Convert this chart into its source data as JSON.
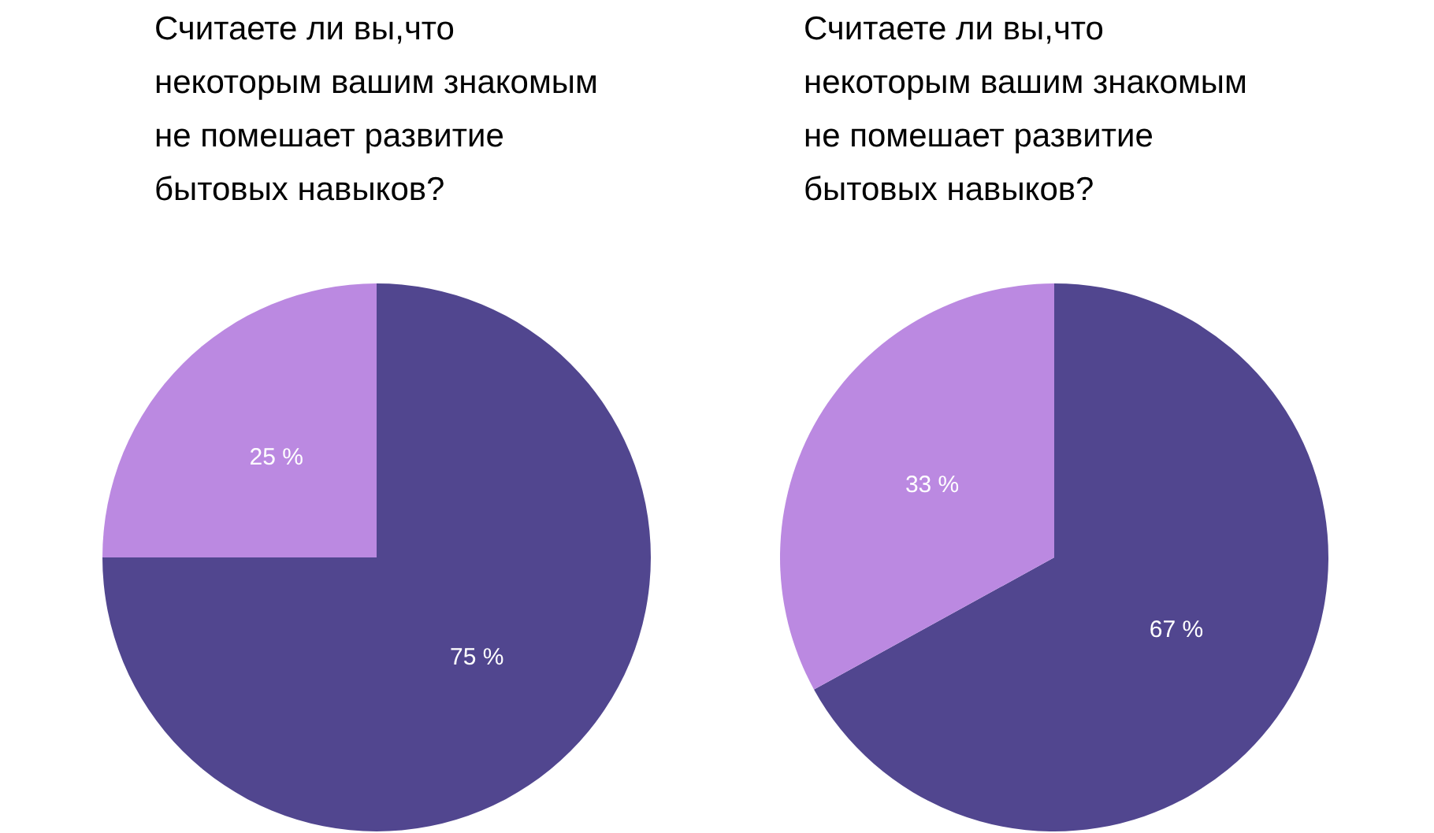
{
  "chart_data": [
    {
      "type": "pie",
      "title": "Считаете ли вы,что некоторым вашим знакомым не помешает развитие бытовых навыков?",
      "categories": [
        null,
        null
      ],
      "values": [
        75,
        25
      ],
      "colors": [
        "#51468f",
        "#bb89e1"
      ],
      "value_labels": [
        "75 %",
        "25 %"
      ]
    },
    {
      "type": "pie",
      "title": "Считаете ли вы,что некоторым вашим знакомым не помешает развитие бытовых навыков?",
      "categories": [
        null,
        null
      ],
      "values": [
        67,
        33
      ],
      "colors": [
        "#51468f",
        "#bb89e1"
      ],
      "value_labels": [
        "67 %",
        "33 %"
      ]
    }
  ]
}
